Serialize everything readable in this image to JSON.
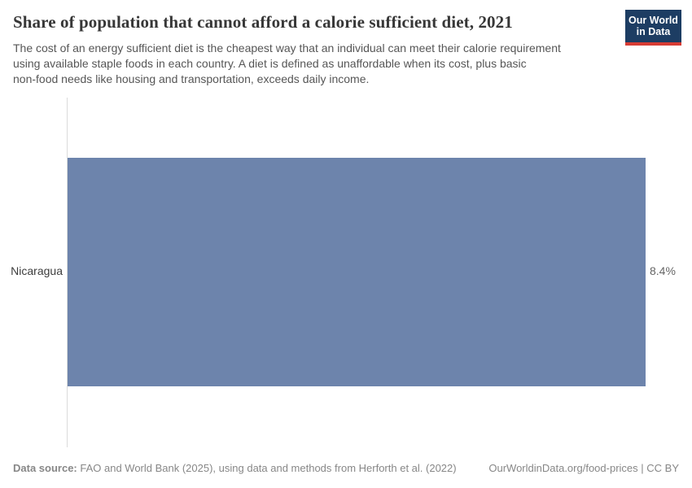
{
  "header": {
    "title": "Share of population that cannot afford a calorie sufficient diet, 2021",
    "subtitle_lines": [
      "The cost of an energy sufficient diet is the cheapest way that an individual can meet their calorie requirement",
      "using available staple foods in each country. A diet is defined as unaffordable when its cost, plus basic",
      "non-food needs like housing and transportation, exceeds daily income."
    ]
  },
  "logo": {
    "line1": "Our World",
    "line2": "in Data",
    "bg_color": "#1d3d63",
    "stripe_color": "#d73c34"
  },
  "chart_data": {
    "type": "bar",
    "orientation": "horizontal",
    "title": "Share of population that cannot afford a calorie sufficient diet, 2021",
    "categories": [
      "Nicaragua"
    ],
    "values": [
      8.4
    ],
    "value_labels": [
      "8.4%"
    ],
    "unit": "%",
    "xlim": [
      0,
      8.4
    ],
    "grid": false,
    "legend": false,
    "bar_color": "#6d84ac",
    "axis_line_color": "#dbdbdb"
  },
  "footer": {
    "data_source_label": "Data source:",
    "data_source_text": " FAO and World Bank (2025), using data and methods from Herforth et al. (2022)",
    "link_text": "OurWorldinData.org/food-prices",
    "separator": " | ",
    "license": "CC BY"
  }
}
